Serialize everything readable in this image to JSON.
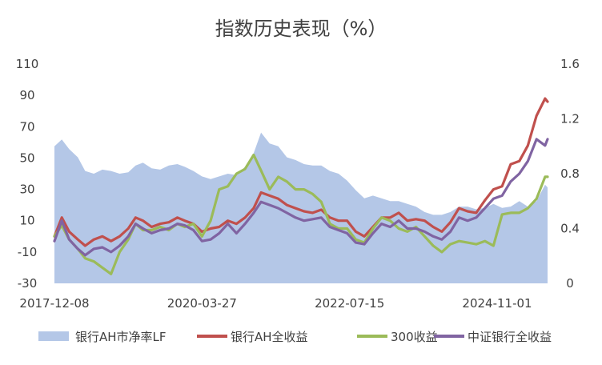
{
  "chart_data": {
    "type": "line",
    "title": "指数历史表现（%）",
    "x_ticks": [
      "2017-12-08",
      "2020-03-27",
      "2022-07-15",
      "2024-11-01"
    ],
    "x_range": [
      "2017-12-08",
      "2025-08-15"
    ],
    "y_left": {
      "ticks": [
        "-30",
        "-10",
        "10",
        "30",
        "50",
        "70",
        "90",
        "110"
      ],
      "range": [
        -30,
        110
      ],
      "unit": "%"
    },
    "y_right": {
      "ticks": [
        "0",
        "0.4",
        "0.8",
        "1.2",
        "1.6"
      ],
      "range": [
        0,
        1.6
      ]
    },
    "legend_position": "bottom",
    "grid": false,
    "series": [
      {
        "name": "银行AH市净率LF",
        "type": "area",
        "axis": "right",
        "color": "#b4c7e7",
        "x": [
          "2017-12-08",
          "2018-01-19",
          "2018-03-02",
          "2018-04-20",
          "2018-06-01",
          "2018-07-20",
          "2018-09-07",
          "2018-10-26",
          "2018-12-14",
          "2019-02-01",
          "2019-03-15",
          "2019-04-26",
          "2019-06-14",
          "2019-08-02",
          "2019-09-20",
          "2019-11-08",
          "2019-12-20",
          "2020-02-07",
          "2020-03-27",
          "2020-05-15",
          "2020-07-03",
          "2020-08-21",
          "2020-10-09",
          "2020-11-27",
          "2021-01-15",
          "2021-02-26",
          "2021-04-16",
          "2021-06-04",
          "2021-07-23",
          "2021-09-10",
          "2021-10-29",
          "2021-12-17",
          "2022-02-04",
          "2022-03-25",
          "2022-05-13",
          "2022-07-01",
          "2022-08-19",
          "2022-10-07",
          "2022-11-25",
          "2023-01-13",
          "2023-03-03",
          "2023-04-21",
          "2023-06-09",
          "2023-07-28",
          "2023-09-15",
          "2023-11-03",
          "2023-12-22",
          "2024-02-09",
          "2024-03-29",
          "2024-05-17",
          "2024-07-05",
          "2024-08-23",
          "2024-10-11",
          "2024-11-29",
          "2025-01-17",
          "2025-03-07",
          "2025-04-25",
          "2025-06-13",
          "2025-08-01",
          "2025-08-15"
        ],
        "values": [
          1.0,
          1.05,
          0.98,
          0.92,
          0.82,
          0.8,
          0.83,
          0.82,
          0.8,
          0.81,
          0.86,
          0.88,
          0.84,
          0.83,
          0.86,
          0.87,
          0.85,
          0.82,
          0.78,
          0.76,
          0.78,
          0.8,
          0.79,
          0.85,
          0.95,
          1.1,
          1.02,
          1.0,
          0.92,
          0.9,
          0.87,
          0.86,
          0.86,
          0.82,
          0.8,
          0.75,
          0.68,
          0.62,
          0.64,
          0.62,
          0.6,
          0.6,
          0.58,
          0.56,
          0.52,
          0.5,
          0.5,
          0.52,
          0.56,
          0.56,
          0.54,
          0.55,
          0.58,
          0.55,
          0.56,
          0.6,
          0.56,
          0.6,
          0.72,
          0.7
        ]
      },
      {
        "name": "银行AH全收益",
        "type": "line",
        "axis": "left",
        "color": "#c0504d",
        "x": [
          "2017-12-08",
          "2018-01-19",
          "2018-03-02",
          "2018-04-20",
          "2018-06-01",
          "2018-07-20",
          "2018-09-07",
          "2018-10-26",
          "2018-12-14",
          "2019-02-01",
          "2019-03-15",
          "2019-04-26",
          "2019-06-14",
          "2019-08-02",
          "2019-09-20",
          "2019-11-08",
          "2019-12-20",
          "2020-02-07",
          "2020-03-27",
          "2020-05-15",
          "2020-07-03",
          "2020-08-21",
          "2020-10-09",
          "2020-11-27",
          "2021-01-15",
          "2021-02-26",
          "2021-04-16",
          "2021-06-04",
          "2021-07-23",
          "2021-09-10",
          "2021-10-29",
          "2021-12-17",
          "2022-02-04",
          "2022-03-25",
          "2022-05-13",
          "2022-07-01",
          "2022-08-19",
          "2022-10-07",
          "2022-11-25",
          "2023-01-13",
          "2023-03-03",
          "2023-04-21",
          "2023-06-09",
          "2023-07-28",
          "2023-09-15",
          "2023-11-03",
          "2023-12-22",
          "2024-02-09",
          "2024-03-29",
          "2024-05-17",
          "2024-07-05",
          "2024-08-23",
          "2024-10-11",
          "2024-11-29",
          "2025-01-17",
          "2025-03-07",
          "2025-04-25",
          "2025-06-13",
          "2025-08-01",
          "2025-08-15"
        ],
        "values": [
          0,
          12,
          3,
          -2,
          -6,
          -2,
          0,
          -3,
          0,
          5,
          12,
          10,
          6,
          8,
          9,
          12,
          10,
          8,
          3,
          5,
          6,
          10,
          8,
          12,
          18,
          28,
          26,
          24,
          20,
          18,
          16,
          15,
          17,
          12,
          10,
          10,
          3,
          0,
          6,
          12,
          12,
          15,
          10,
          11,
          10,
          6,
          3,
          9,
          18,
          16,
          15,
          23,
          30,
          32,
          46,
          48,
          58,
          77,
          88,
          86
        ]
      },
      {
        "name": "300收益",
        "type": "line",
        "axis": "left",
        "color": "#9bbb59",
        "x": [
          "2017-12-08",
          "2018-01-19",
          "2018-03-02",
          "2018-04-20",
          "2018-06-01",
          "2018-07-20",
          "2018-09-07",
          "2018-10-26",
          "2018-12-14",
          "2019-02-01",
          "2019-03-15",
          "2019-04-26",
          "2019-06-14",
          "2019-08-02",
          "2019-09-20",
          "2019-11-08",
          "2019-12-20",
          "2020-02-07",
          "2020-03-27",
          "2020-05-15",
          "2020-07-03",
          "2020-08-21",
          "2020-10-09",
          "2020-11-27",
          "2021-01-15",
          "2021-02-26",
          "2021-04-16",
          "2021-06-04",
          "2021-07-23",
          "2021-09-10",
          "2021-10-29",
          "2021-12-17",
          "2022-02-04",
          "2022-03-25",
          "2022-05-13",
          "2022-07-01",
          "2022-08-19",
          "2022-10-07",
          "2022-11-25",
          "2023-01-13",
          "2023-03-03",
          "2023-04-21",
          "2023-06-09",
          "2023-07-28",
          "2023-09-15",
          "2023-11-03",
          "2023-12-22",
          "2024-02-09",
          "2024-03-29",
          "2024-05-17",
          "2024-07-05",
          "2024-08-23",
          "2024-10-11",
          "2024-11-29",
          "2025-01-17",
          "2025-03-07",
          "2025-04-25",
          "2025-06-13",
          "2025-08-01",
          "2025-08-15"
        ],
        "values": [
          0,
          7,
          -2,
          -8,
          -14,
          -16,
          -20,
          -24,
          -10,
          -2,
          8,
          4,
          4,
          6,
          4,
          8,
          6,
          8,
          0,
          10,
          30,
          32,
          40,
          43,
          52,
          42,
          30,
          38,
          35,
          30,
          30,
          27,
          22,
          8,
          5,
          5,
          -2,
          -4,
          5,
          12,
          10,
          5,
          3,
          6,
          0,
          -6,
          -10,
          -5,
          -3,
          -4,
          -5,
          -3,
          -6,
          14,
          15,
          15,
          18,
          24,
          38,
          38
        ]
      },
      {
        "name": "中证银行全收益",
        "type": "line",
        "axis": "left",
        "color": "#8064a2",
        "x": [
          "2017-12-08",
          "2018-01-19",
          "2018-03-02",
          "2018-04-20",
          "2018-06-01",
          "2018-07-20",
          "2018-09-07",
          "2018-10-26",
          "2018-12-14",
          "2019-02-01",
          "2019-03-15",
          "2019-04-26",
          "2019-06-14",
          "2019-08-02",
          "2019-09-20",
          "2019-11-08",
          "2019-12-20",
          "2020-02-07",
          "2020-03-27",
          "2020-05-15",
          "2020-07-03",
          "2020-08-21",
          "2020-10-09",
          "2020-11-27",
          "2021-01-15",
          "2021-02-26",
          "2021-04-16",
          "2021-06-04",
          "2021-07-23",
          "2021-09-10",
          "2021-10-29",
          "2021-12-17",
          "2022-02-04",
          "2022-03-25",
          "2022-05-13",
          "2022-07-01",
          "2022-08-19",
          "2022-10-07",
          "2022-11-25",
          "2023-01-13",
          "2023-03-03",
          "2023-04-21",
          "2023-06-09",
          "2023-07-28",
          "2023-09-15",
          "2023-11-03",
          "2023-12-22",
          "2024-02-09",
          "2024-03-29",
          "2024-05-17",
          "2024-07-05",
          "2024-08-23",
          "2024-10-11",
          "2024-11-29",
          "2025-01-17",
          "2025-03-07",
          "2025-04-25",
          "2025-06-13",
          "2025-08-01",
          "2025-08-15"
        ],
        "values": [
          -3,
          10,
          -2,
          -8,
          -12,
          -8,
          -7,
          -10,
          -6,
          0,
          8,
          5,
          2,
          4,
          5,
          8,
          7,
          4,
          -3,
          -2,
          2,
          8,
          2,
          8,
          15,
          22,
          20,
          18,
          15,
          12,
          10,
          11,
          12,
          6,
          4,
          2,
          -4,
          -5,
          2,
          8,
          6,
          10,
          5,
          5,
          3,
          0,
          -2,
          3,
          12,
          10,
          12,
          18,
          24,
          26,
          35,
          40,
          48,
          62,
          58,
          62
        ]
      }
    ]
  }
}
